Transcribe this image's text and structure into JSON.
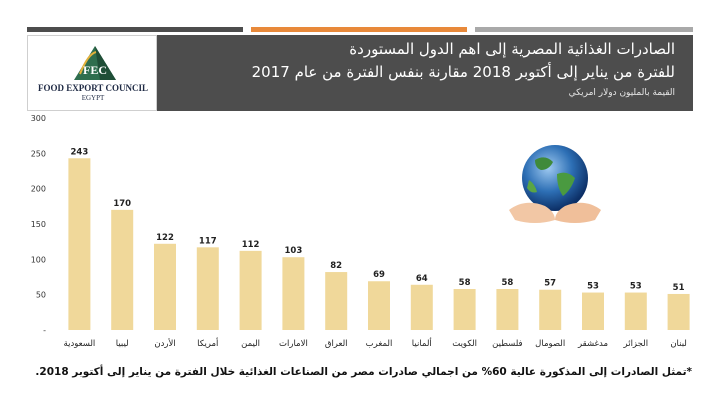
{
  "header": {
    "title_line1": "الصادرات الغذائية المصرية إلى اهم الدول المستوردة",
    "title_line2": "للفترة من يناير إلى أكتوبر 2018 مقارنة بنفس الفترة من عام 2017",
    "subtitle": "القيمة بالمليون دولار امريكي"
  },
  "logo": {
    "mark": "FEC",
    "name": "FOOD EXPORT COUNCIL",
    "country": "EGYPT"
  },
  "top_bar_colors": [
    "#4d4d4d",
    "#e8893a",
    "#a9a9a9"
  ],
  "footnote": "*تمثل الصادرات إلى المذكورة عالية 60% من اجمالي صادرات مصر من الصناعات الغذائية خلال الفترة من يناير إلى أكتوبر 2018.",
  "chart_data": {
    "type": "bar",
    "categories": [
      "السعودية",
      "ليبيا",
      "الأردن",
      "أمريكا",
      "اليمن",
      "الامارات",
      "العراق",
      "المغرب",
      "ألمانيا",
      "الكويت",
      "فلسطين",
      "الصومال",
      "مدغشقر",
      "الجزائر",
      "لبنان"
    ],
    "values": [
      243,
      170,
      122,
      117,
      112,
      103,
      82,
      69,
      64,
      58,
      58,
      57,
      53,
      53,
      51
    ],
    "ylim": [
      0,
      300
    ],
    "yticks": [
      "-",
      "50",
      "100",
      "150",
      "200",
      "250",
      "300"
    ],
    "bar_color": "#f0d89a",
    "grid": false,
    "legend": "none"
  }
}
